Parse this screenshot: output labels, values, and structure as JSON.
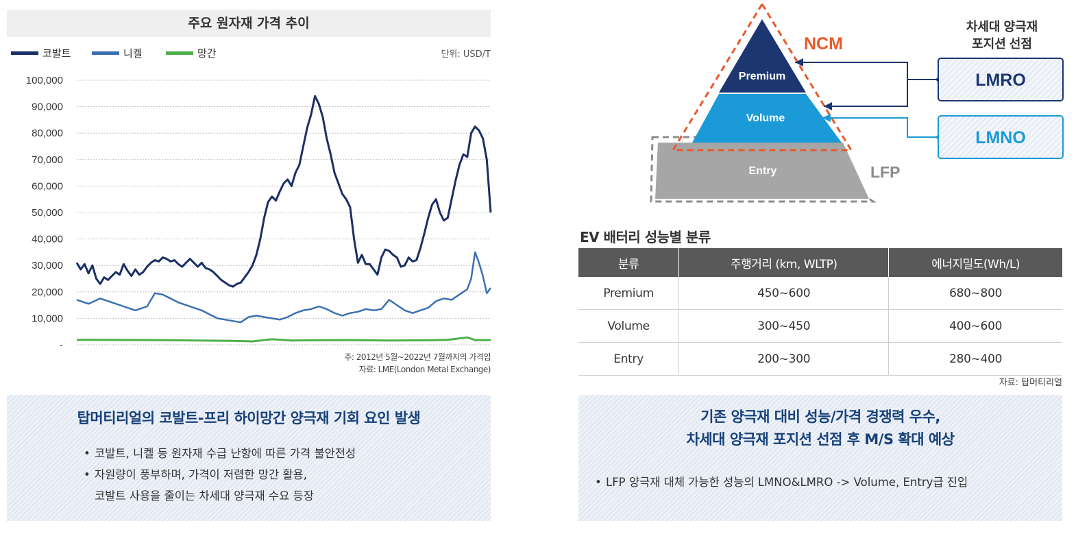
{
  "left": {
    "chart_title": "주요 원자재 가격 추이",
    "unit": "단위:  USD/T",
    "source_line1": "주: 2012년 5월~2022년 7월까지의 가격임",
    "source_line2": "자료: LME(London Metal Exchange)",
    "box": {
      "title": "탑머티리얼의 코발트-프리 하이망간 양극재 기회 요인 발생",
      "bullet1": "코발트, 니켈 등 원자재 수급 난항에 따른 가격 불안전성",
      "bullet2_line1": "자원량이 풍부하며, 가격이 저렴한 망간 활용,",
      "bullet2_line2": "코발트 사용을 줄이는 차세대 양극재 수요 등장"
    }
  },
  "colors": {
    "cobalt": "#1b2f66",
    "nickel": "#3a70b2",
    "manganese": "#4db04a",
    "ncm": "#e8592a",
    "premium": "#1b3670",
    "volume": "#1a9ad6",
    "entry": "#a6a6a6",
    "lmro": "#1b3670",
    "lmno": "#1a9ad6"
  },
  "chart_data": {
    "type": "line",
    "title": "주요 원자재 가격 추이",
    "unit": "단위:  USD/T",
    "x_range": [
      "2012-05",
      "2022-07"
    ],
    "y_ticks": [
      "100,000",
      "90,000",
      "80,000",
      "70,000",
      "60,000",
      "50,000",
      "40,000",
      "30,000",
      "20,000",
      "10,000",
      "-"
    ],
    "ylim": [
      0,
      100000
    ],
    "grid": true,
    "legend_position": "top-left",
    "series": [
      {
        "name": "코발트",
        "values": [
          [
            0,
            31000
          ],
          [
            0.01,
            28500
          ],
          [
            0.02,
            30500
          ],
          [
            0.03,
            27000
          ],
          [
            0.04,
            30000
          ],
          [
            0.05,
            25000
          ],
          [
            0.06,
            23000
          ],
          [
            0.07,
            25500
          ],
          [
            0.08,
            24500
          ],
          [
            0.09,
            26000
          ],
          [
            0.1,
            27500
          ],
          [
            0.11,
            26500
          ],
          [
            0.12,
            30500
          ],
          [
            0.13,
            28000
          ],
          [
            0.14,
            26000
          ],
          [
            0.15,
            28500
          ],
          [
            0.16,
            26500
          ],
          [
            0.17,
            27500
          ],
          [
            0.18,
            29500
          ],
          [
            0.19,
            31000
          ],
          [
            0.2,
            32000
          ],
          [
            0.21,
            31500
          ],
          [
            0.22,
            33000
          ],
          [
            0.23,
            32500
          ],
          [
            0.24,
            31500
          ],
          [
            0.25,
            32000
          ],
          [
            0.26,
            30500
          ],
          [
            0.27,
            29500
          ],
          [
            0.28,
            31000
          ],
          [
            0.29,
            32500
          ],
          [
            0.3,
            31000
          ],
          [
            0.31,
            29500
          ],
          [
            0.32,
            31000
          ],
          [
            0.33,
            29000
          ],
          [
            0.34,
            28500
          ],
          [
            0.35,
            27500
          ],
          [
            0.36,
            26000
          ],
          [
            0.37,
            24500
          ],
          [
            0.38,
            23500
          ],
          [
            0.39,
            22500
          ],
          [
            0.4,
            22000
          ],
          [
            0.41,
            23000
          ],
          [
            0.42,
            23500
          ],
          [
            0.43,
            25500
          ],
          [
            0.44,
            27500
          ],
          [
            0.45,
            30000
          ],
          [
            0.46,
            34000
          ],
          [
            0.47,
            40000
          ],
          [
            0.48,
            48000
          ],
          [
            0.49,
            54000
          ],
          [
            0.5,
            56000
          ],
          [
            0.51,
            54500
          ],
          [
            0.52,
            58000
          ],
          [
            0.53,
            61000
          ],
          [
            0.54,
            62500
          ],
          [
            0.55,
            60000
          ],
          [
            0.56,
            65000
          ],
          [
            0.57,
            68000
          ],
          [
            0.58,
            75000
          ],
          [
            0.59,
            82000
          ],
          [
            0.6,
            87000
          ],
          [
            0.61,
            94000
          ],
          [
            0.62,
            91000
          ],
          [
            0.63,
            86000
          ],
          [
            0.64,
            78000
          ],
          [
            0.65,
            72000
          ],
          [
            0.66,
            65000
          ],
          [
            0.67,
            61000
          ],
          [
            0.68,
            57000
          ],
          [
            0.69,
            55000
          ],
          [
            0.7,
            52000
          ],
          [
            0.71,
            40000
          ],
          [
            0.72,
            31000
          ],
          [
            0.73,
            34000
          ],
          [
            0.74,
            30500
          ],
          [
            0.75,
            30500
          ],
          [
            0.76,
            28500
          ],
          [
            0.77,
            26500
          ],
          [
            0.78,
            33000
          ],
          [
            0.79,
            36000
          ],
          [
            0.8,
            35500
          ],
          [
            0.81,
            34000
          ],
          [
            0.82,
            33000
          ],
          [
            0.83,
            29500
          ],
          [
            0.84,
            30000
          ],
          [
            0.85,
            33000
          ],
          [
            0.86,
            31500
          ],
          [
            0.87,
            32000
          ],
          [
            0.88,
            36500
          ],
          [
            0.89,
            42000
          ],
          [
            0.9,
            48000
          ],
          [
            0.91,
            53000
          ],
          [
            0.92,
            55000
          ],
          [
            0.93,
            50000
          ],
          [
            0.94,
            47000
          ],
          [
            0.95,
            48000
          ],
          [
            0.96,
            55000
          ],
          [
            0.97,
            62000
          ],
          [
            0.98,
            68000
          ],
          [
            0.99,
            72000
          ],
          [
            1,
            71000
          ],
          [
            1.01,
            80000
          ],
          [
            1.02,
            82500
          ],
          [
            1.03,
            81000
          ],
          [
            1.04,
            78000
          ],
          [
            1.05,
            70000
          ],
          [
            1.06,
            50000
          ]
        ]
      },
      {
        "name": "니켈",
        "values": [
          [
            0,
            17000
          ],
          [
            0.03,
            15500
          ],
          [
            0.06,
            17500
          ],
          [
            0.09,
            16000
          ],
          [
            0.12,
            14500
          ],
          [
            0.15,
            13000
          ],
          [
            0.18,
            14500
          ],
          [
            0.2,
            19500
          ],
          [
            0.22,
            19000
          ],
          [
            0.24,
            17500
          ],
          [
            0.26,
            16000
          ],
          [
            0.28,
            15000
          ],
          [
            0.3,
            14000
          ],
          [
            0.32,
            13000
          ],
          [
            0.34,
            11500
          ],
          [
            0.36,
            10000
          ],
          [
            0.38,
            9500
          ],
          [
            0.4,
            9000
          ],
          [
            0.42,
            8500
          ],
          [
            0.44,
            10500
          ],
          [
            0.46,
            11000
          ],
          [
            0.48,
            10500
          ],
          [
            0.5,
            10000
          ],
          [
            0.52,
            9500
          ],
          [
            0.54,
            10500
          ],
          [
            0.56,
            12000
          ],
          [
            0.58,
            13000
          ],
          [
            0.6,
            13500
          ],
          [
            0.62,
            14500
          ],
          [
            0.64,
            13500
          ],
          [
            0.66,
            12000
          ],
          [
            0.68,
            11000
          ],
          [
            0.7,
            12000
          ],
          [
            0.72,
            12500
          ],
          [
            0.74,
            13500
          ],
          [
            0.76,
            13000
          ],
          [
            0.78,
            13500
          ],
          [
            0.8,
            17000
          ],
          [
            0.82,
            15000
          ],
          [
            0.84,
            13000
          ],
          [
            0.86,
            12000
          ],
          [
            0.88,
            13000
          ],
          [
            0.9,
            14000
          ],
          [
            0.92,
            16500
          ],
          [
            0.94,
            17500
          ],
          [
            0.96,
            17000
          ],
          [
            0.98,
            19000
          ],
          [
            1,
            21000
          ],
          [
            1.01,
            25000
          ],
          [
            1.02,
            35000
          ],
          [
            1.03,
            31000
          ],
          [
            1.04,
            26000
          ],
          [
            1.05,
            19500
          ],
          [
            1.06,
            21500
          ]
        ]
      },
      {
        "name": "망간",
        "values": [
          [
            0,
            1900
          ],
          [
            0.2,
            1800
          ],
          [
            0.4,
            1500
          ],
          [
            0.45,
            1300
          ],
          [
            0.5,
            2100
          ],
          [
            0.55,
            1600
          ],
          [
            0.6,
            1700
          ],
          [
            0.7,
            1800
          ],
          [
            0.8,
            1600
          ],
          [
            0.9,
            1700
          ],
          [
            0.95,
            1900
          ],
          [
            1,
            2800
          ],
          [
            1.02,
            1800
          ],
          [
            1.06,
            1800
          ]
        ]
      }
    ]
  },
  "pyramid": {
    "premium_label": "Premium",
    "volume_label": "Volume",
    "entry_label": "Entry",
    "ncm_label": "NCM",
    "lfp_label": "LFP",
    "next_gen_title_line1": "차세대 양극재",
    "next_gen_title_line2": "포지션 선점",
    "lmro_label": "LMRO",
    "lmno_label": "LMNO"
  },
  "table": {
    "title": "EV 배터리 성능별 분류",
    "headers": [
      "분류",
      "주행거리 (km, WLTP)",
      "에너지밀도(Wh/L)"
    ],
    "rows": [
      [
        "Premium",
        "450~600",
        "680~800"
      ],
      [
        "Volume",
        "300~450",
        "400~600"
      ],
      [
        "Entry",
        "200~300",
        "280~400"
      ]
    ],
    "source": "자료: 탑머티리얼"
  },
  "right_box": {
    "title_line1": "기존 양극재 대비 성능/가격 경쟁력 우수,",
    "title_line2": "차세대 양극재 포지션 선점 후 M/S 확대 예상",
    "bullet1": "LFP 양극재 대체 가능한 성능의 LMNO&LMRO ->  Volume, Entry급 진입"
  }
}
